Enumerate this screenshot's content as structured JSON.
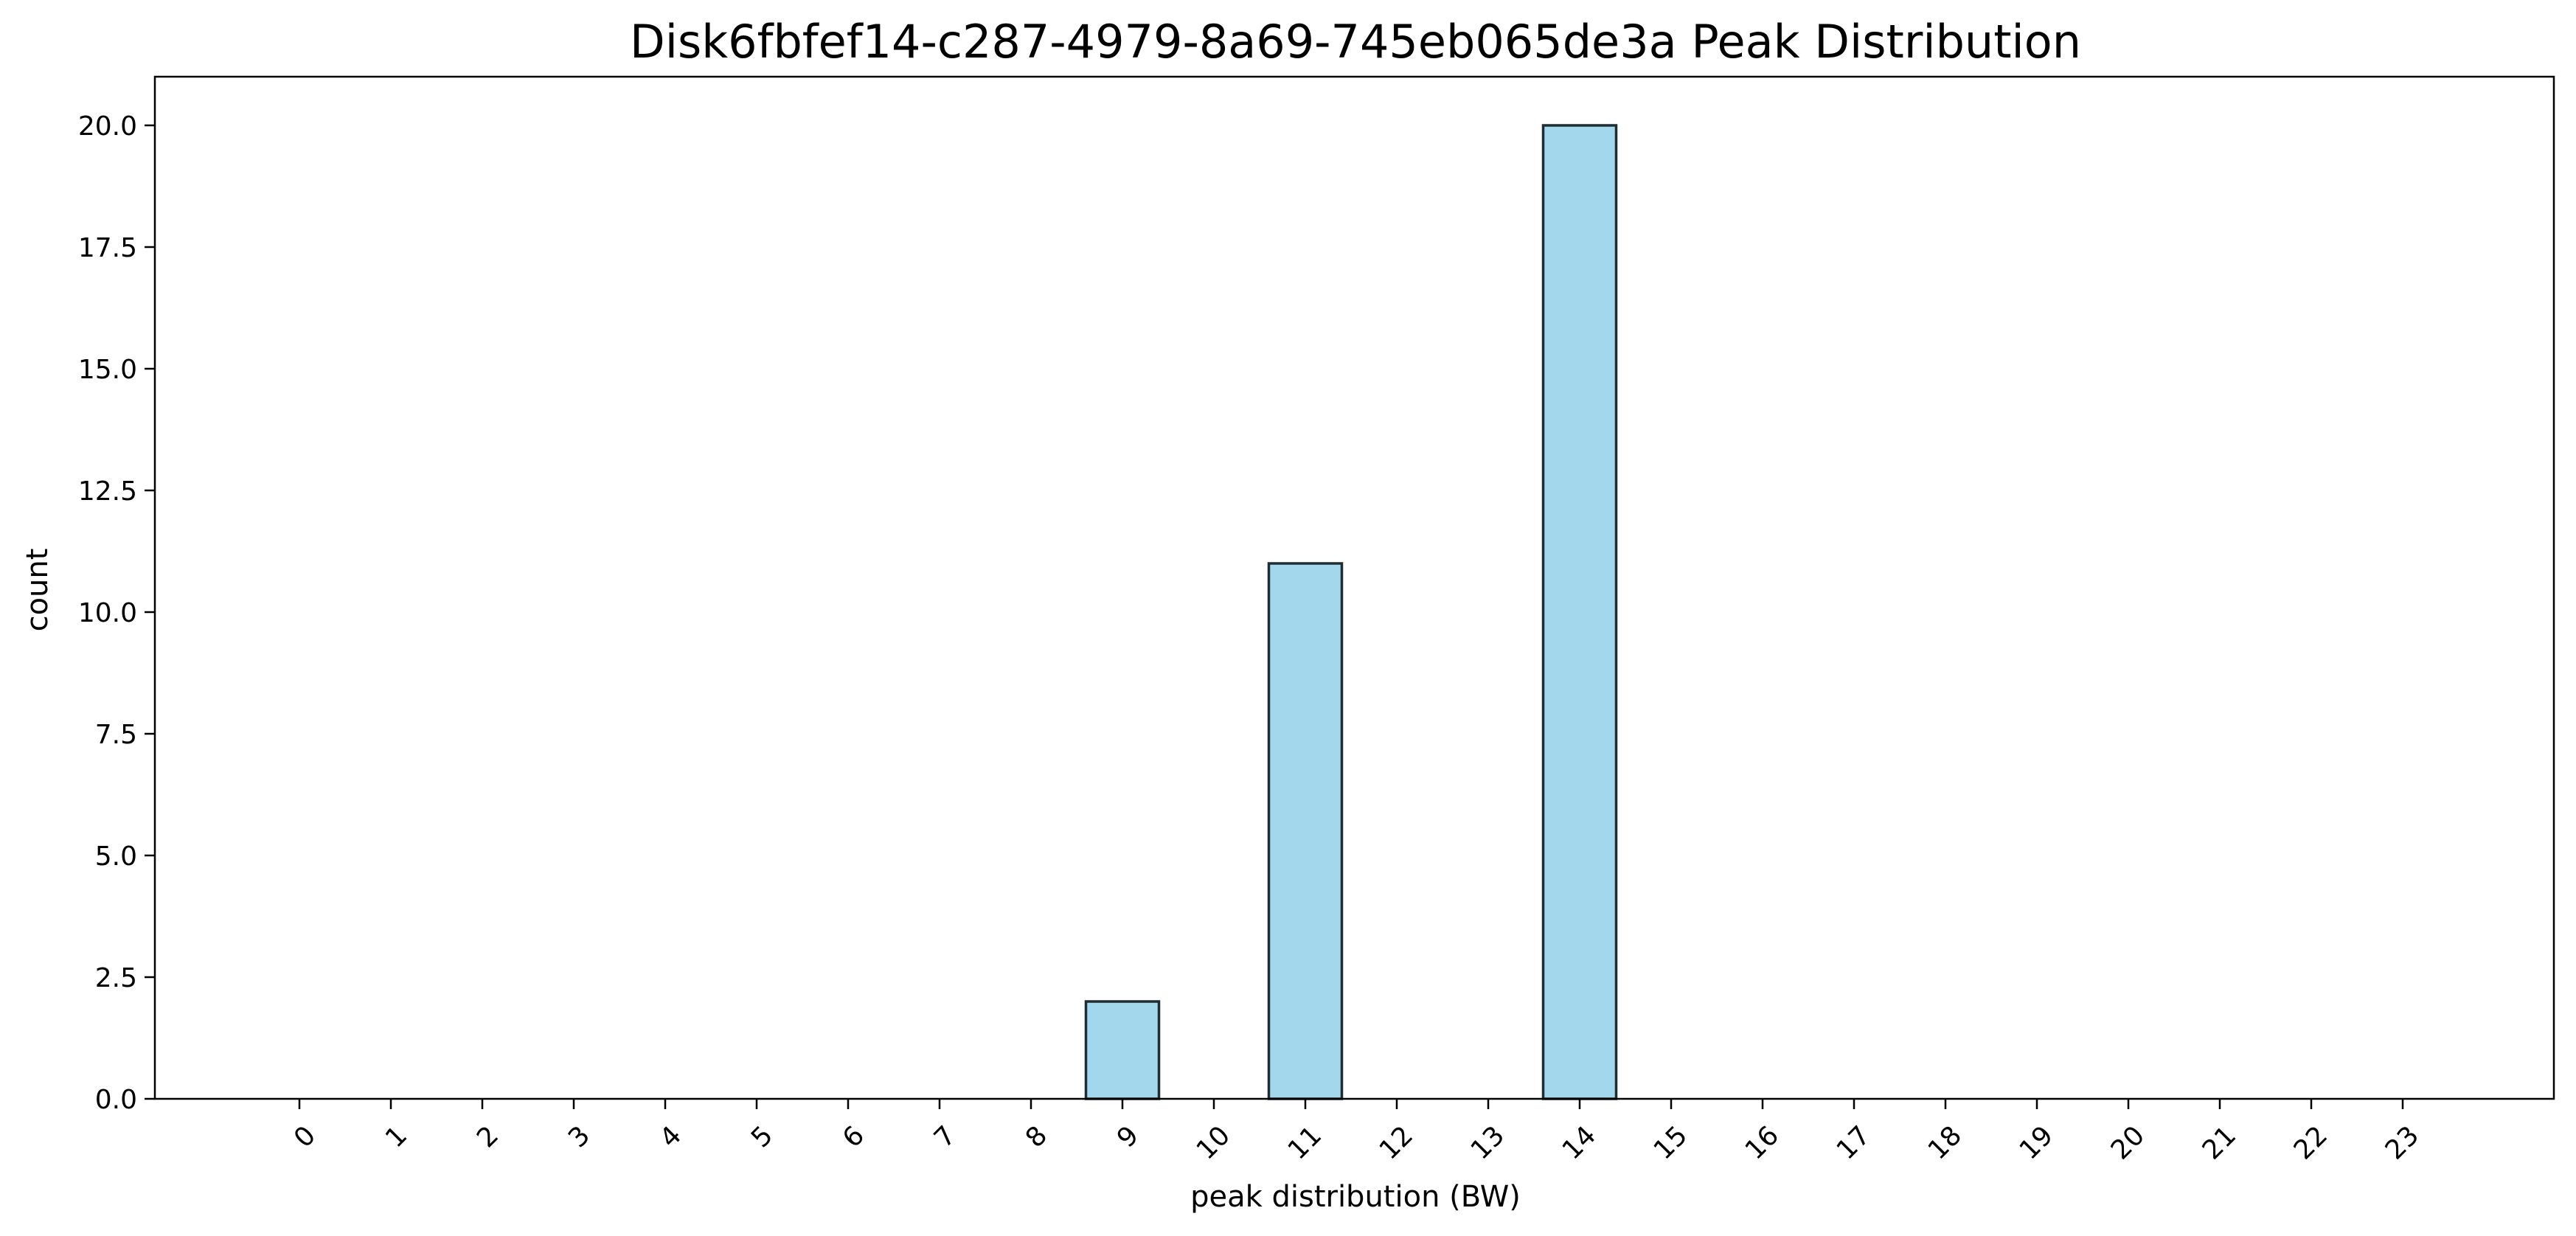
{
  "chart_data": {
    "type": "bar",
    "title": "Disk6fbfef14-c287-4979-8a69-745eb065de3a Peak Distribution",
    "xlabel": "peak distribution (BW)",
    "ylabel": "count",
    "categories": [
      "0",
      "1",
      "2",
      "3",
      "4",
      "5",
      "6",
      "7",
      "8",
      "9",
      "10",
      "11",
      "12",
      "13",
      "14",
      "15",
      "16",
      "17",
      "18",
      "19",
      "20",
      "21",
      "22",
      "23"
    ],
    "values": [
      0,
      0,
      0,
      0,
      0,
      0,
      0,
      0,
      0,
      2,
      0,
      11,
      0,
      0,
      20,
      0,
      0,
      0,
      0,
      0,
      0,
      0,
      0,
      0
    ],
    "ylim": [
      0,
      21
    ],
    "yticks": [
      "0.0",
      "2.5",
      "5.0",
      "7.5",
      "10.0",
      "12.5",
      "15.0",
      "17.5",
      "20.0"
    ],
    "grid": false,
    "bar_color": "#a2d7ec",
    "edge_color": "#1f2d33"
  }
}
